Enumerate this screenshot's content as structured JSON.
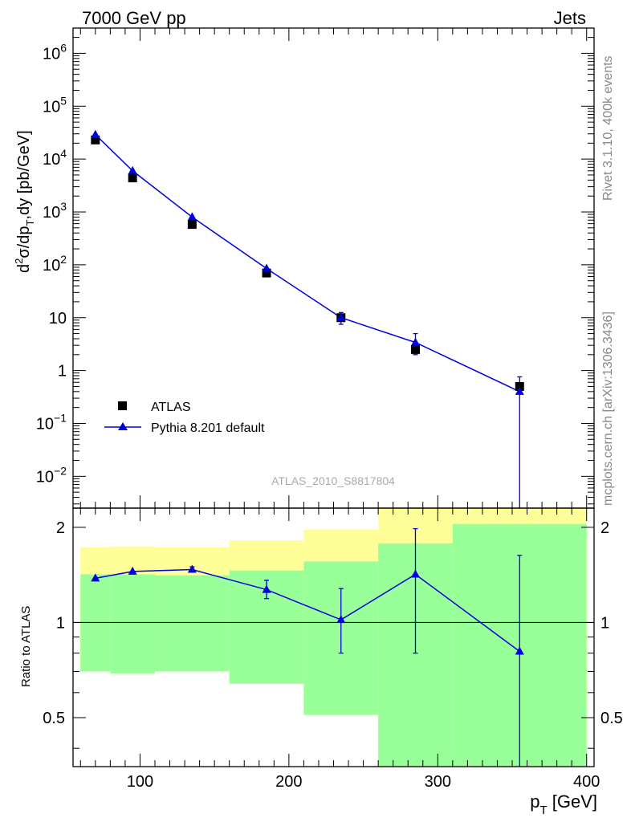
{
  "header": {
    "left": "7000 GeV pp",
    "right": "Jets"
  },
  "side_labels": {
    "rivet": "Rivet 3.1.10,  400k events",
    "mcplots": "mcplots.cern.ch [arXiv:1306.3436]"
  },
  "analysis_tag": "ATLAS_2010_S8817804",
  "legend": {
    "data": "ATLAS",
    "mc": "Pythia 8.201 default"
  },
  "colors": {
    "mc": "#0000dd",
    "data": "#000000",
    "band_outer": "#ffff99",
    "band_inner": "#99ff99"
  },
  "chart_data": [
    {
      "type": "scatter",
      "title": "",
      "ylabel": "d²σ/dp_T,dy [pb/GeV]",
      "yscale": "log",
      "ylim": [
        0.0025,
        3000000
      ],
      "xlim": [
        55,
        405
      ],
      "y_tick_labels": [
        "10^-2",
        "10^-1",
        "1",
        "10",
        "10^2",
        "10^3",
        "10^4",
        "10^5",
        "10^6"
      ],
      "series": [
        {
          "name": "ATLAS",
          "x": [
            70,
            95,
            135,
            185,
            235,
            285,
            355
          ],
          "y": [
            23000,
            4400,
            580,
            70,
            10,
            2.5,
            0.5
          ]
        },
        {
          "name": "Pythia 8.201 default",
          "x": [
            70,
            95,
            135,
            185,
            235,
            285,
            355
          ],
          "y": [
            29000,
            6000,
            800,
            85,
            10,
            3.4,
            0.4
          ],
          "err_low": [
            0,
            0,
            0,
            0,
            2.5,
            1.4,
            0.4
          ],
          "err_high": [
            0,
            0,
            0,
            0,
            2.5,
            1.6,
            0.36
          ]
        }
      ]
    },
    {
      "type": "line",
      "ylabel": "Ratio to ATLAS",
      "xlabel": "p_T [GeV]",
      "xlim": [
        55,
        405
      ],
      "ylim": [
        0.35,
        2.3
      ],
      "x_tick_labels": [
        "100",
        "200",
        "300",
        "400"
      ],
      "y_tick_labels": [
        "0.5",
        "1",
        "2"
      ],
      "reference_line": 1,
      "bands": [
        {
          "x_low": 60,
          "x_high": 80,
          "outer": [
            0.7,
            1.73
          ],
          "inner": [
            0.7,
            1.42
          ]
        },
        {
          "x_low": 80,
          "x_high": 110,
          "outer": [
            0.69,
            1.74
          ],
          "inner": [
            0.69,
            1.42
          ]
        },
        {
          "x_low": 110,
          "x_high": 160,
          "outer": [
            0.7,
            1.73
          ],
          "inner": [
            0.7,
            1.41
          ]
        },
        {
          "x_low": 160,
          "x_high": 210,
          "outer": [
            0.64,
            1.82
          ],
          "inner": [
            0.64,
            1.46
          ]
        },
        {
          "x_low": 210,
          "x_high": 260,
          "outer": [
            0.51,
            1.97
          ],
          "inner": [
            0.51,
            1.56
          ]
        },
        {
          "x_low": 260,
          "x_high": 310,
          "outer": [
            0.35,
            2.3
          ],
          "inner": [
            0.35,
            1.78
          ]
        },
        {
          "x_low": 310,
          "x_high": 400,
          "outer": [
            0.35,
            2.3
          ],
          "inner": [
            0.35,
            2.05
          ]
        }
      ],
      "series": [
        {
          "name": "Pythia 8.201 default",
          "x": [
            70,
            95,
            135,
            185,
            235,
            285,
            355
          ],
          "y": [
            1.38,
            1.45,
            1.47,
            1.27,
            1.02,
            1.42,
            0.81
          ],
          "err_low": [
            0,
            0,
            0.02,
            0.08,
            0.22,
            0.62,
            0.46
          ],
          "err_high": [
            0,
            0,
            0.03,
            0.09,
            0.26,
            0.56,
            0.82
          ]
        }
      ]
    }
  ]
}
